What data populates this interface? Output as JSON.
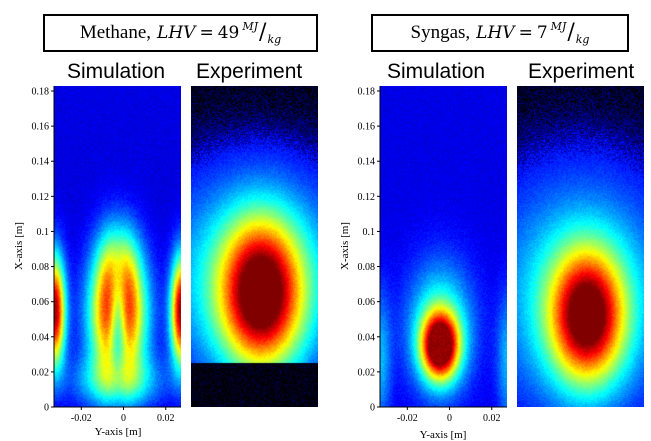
{
  "panels": [
    {
      "fuel": "Methane,",
      "lhv_symbol": "LHV",
      "equals": "=",
      "lhv_value": "49",
      "unit_top": "MJ",
      "unit_bottom": "kg",
      "sim_label": "Simulation",
      "exp_label": "Experiment"
    },
    {
      "fuel": "Syngas,",
      "lhv_symbol": "LHV",
      "equals": "=",
      "lhv_value": "7",
      "unit_top": "MJ",
      "unit_bottom": "kg",
      "sim_label": "Simulation",
      "exp_label": "Experiment"
    }
  ],
  "axes": {
    "x_axis_label": "X-axis [m]",
    "y_axis_label": "Y-axis [m]",
    "vertical_ticks": [
      "0",
      "0.02",
      "0.04",
      "0.06",
      "0.08",
      "0.1",
      "0.12",
      "0.14",
      "0.16",
      "0.18"
    ],
    "horizontal_ticks": [
      "-0.02",
      "0",
      "0.02"
    ]
  },
  "colormap": "jet"
}
